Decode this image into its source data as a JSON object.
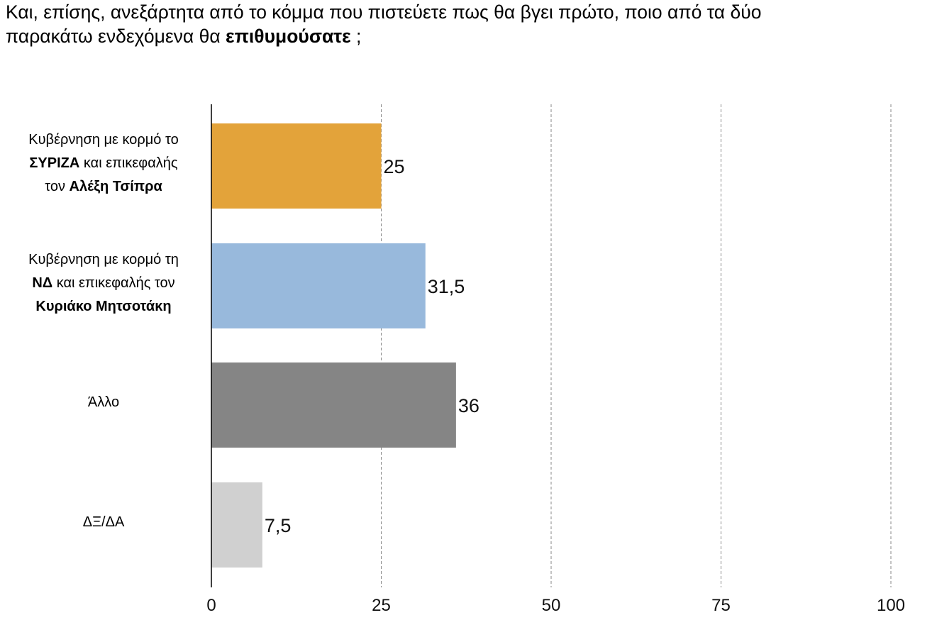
{
  "question": {
    "line1": "Και, επίσης, ανεξάρτητα από το κόμμα που πιστεύετε πως θα βγει πρώτο, ποιο από τα δύο",
    "line2_prefix": "παρακάτω ενδεχόμενα θα ",
    "line2_bold": "επιθυμούσατε",
    "line2_suffix": " ;"
  },
  "chart_data": {
    "type": "bar",
    "orientation": "horizontal",
    "xlim": [
      0,
      100
    ],
    "x_ticks": [
      "0",
      "25",
      "50",
      "75",
      "100"
    ],
    "grid": "vertical dashed at 25, 50, 75, 100",
    "categories": [
      {
        "lines": [
          [
            {
              "text": "Κυβέρνηση με κορμό το",
              "bold": false
            }
          ],
          [
            {
              "text": "ΣΥΡΙΖΑ",
              "bold": true
            },
            {
              "text": " και επικεφαλής",
              "bold": false
            }
          ],
          [
            {
              "text": "τον ",
              "bold": false
            },
            {
              "text": "Αλέξη Τσίπρα",
              "bold": true
            }
          ]
        ]
      },
      {
        "lines": [
          [
            {
              "text": "Κυβέρνηση με κορμό τη",
              "bold": false
            }
          ],
          [
            {
              "text": "ΝΔ",
              "bold": true
            },
            {
              "text": " και επικεφαλής τον",
              "bold": false
            }
          ],
          [
            {
              "text": "Κυριάκο Μητσοτάκη",
              "bold": true
            }
          ]
        ]
      },
      {
        "lines": [
          [
            {
              "text": "Άλλο",
              "bold": false
            }
          ]
        ]
      },
      {
        "lines": [
          [
            {
              "text": "ΔΞ/ΔΑ",
              "bold": false
            }
          ]
        ]
      }
    ],
    "values": [
      25,
      31.5,
      36,
      7.5
    ],
    "value_labels": [
      "25",
      "31,5",
      "36",
      "7,5"
    ],
    "colors": [
      "#e3a33a",
      "#98b9dc",
      "#858585",
      "#d0d0d0"
    ]
  }
}
